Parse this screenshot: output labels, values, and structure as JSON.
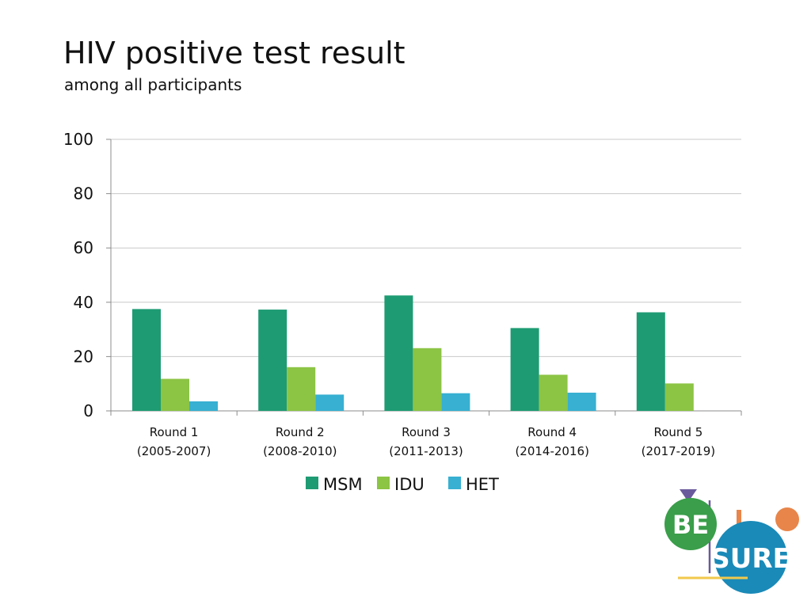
{
  "title": "HIV positive test result",
  "subtitle": "among all participants",
  "chart_data": {
    "type": "bar",
    "categories": [
      [
        "Round 1",
        "(2005-2007)"
      ],
      [
        "Round 2",
        "(2008-2010)"
      ],
      [
        "Round 3",
        "(2011-2013)"
      ],
      [
        "Round 4",
        "(2014-2016)"
      ],
      [
        "Round 5",
        "(2017-2019)"
      ]
    ],
    "series": [
      {
        "name": "MSM",
        "color": "#1e9b73",
        "values": [
          37.5,
          37.3,
          42.5,
          30.5,
          36.3
        ]
      },
      {
        "name": "IDU",
        "color": "#8cc444",
        "values": [
          11.8,
          16.1,
          23.1,
          13.3,
          10.1
        ]
      },
      {
        "name": "HET",
        "color": "#37b0d2",
        "values": [
          3.5,
          6.0,
          6.5,
          6.7,
          null
        ]
      }
    ],
    "ylim": [
      0,
      100
    ],
    "yticks": [
      0,
      20,
      40,
      60,
      80,
      100
    ],
    "grid": true,
    "legend_position": "bottom-center"
  },
  "logo": {
    "line1": "BE",
    "line2": "SURE",
    "colors": {
      "green": "#3a9e4a",
      "blue": "#1a8ab8",
      "orange": "#e8854a",
      "purple": "#6a5a9c",
      "yellow": "#f2c94c"
    }
  }
}
